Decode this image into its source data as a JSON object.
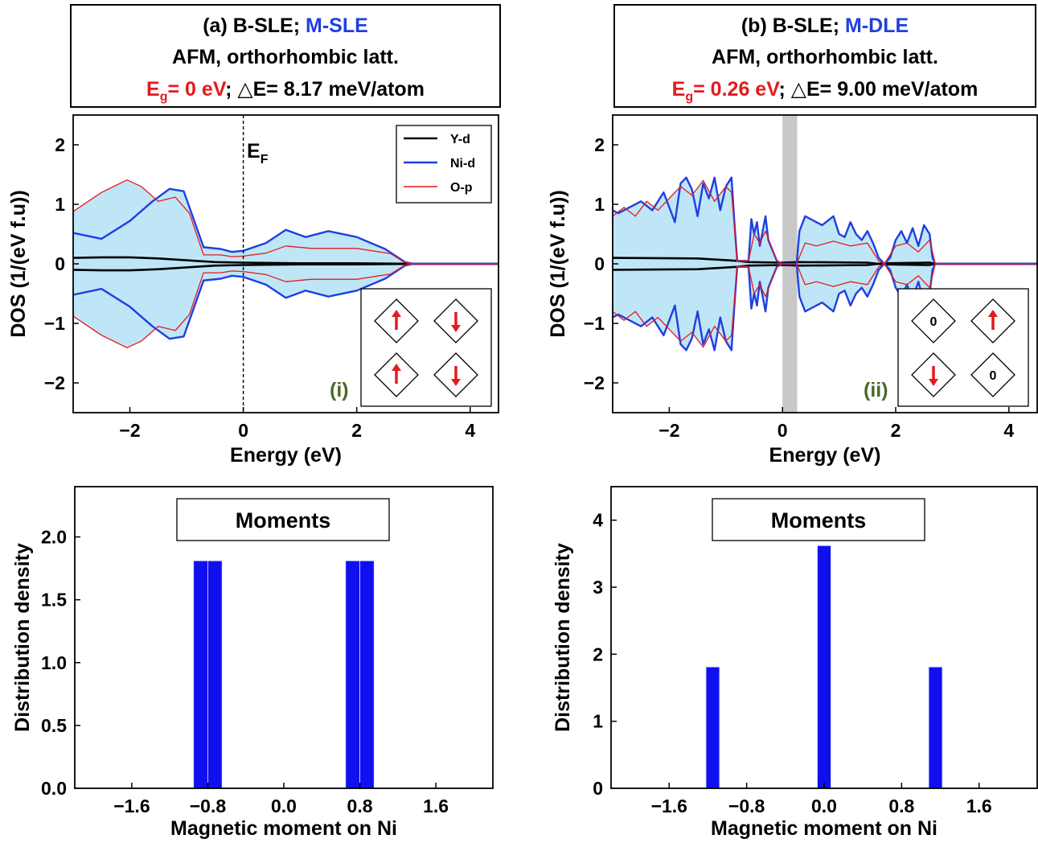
{
  "colors": {
    "red": "#e41a1c",
    "blue": "#1f3fe0",
    "green": "#4a6a2a",
    "fill": "#bfe6f7",
    "gap": "#c8c8c8",
    "bar": "#1010ee"
  },
  "panel_a": {
    "title": {
      "prefix": "(a) B-SLE; ",
      "highlight": "M-SLE"
    },
    "line2": "AFM, orthorhombic latt.",
    "eg": {
      "main": "E",
      "sub": "g",
      "rest": "= 0 eV"
    },
    "de": ";  △E= 8.17 meV/atom",
    "ef_label": {
      "main": "E",
      "sub": "F"
    },
    "inset_tag": "(i)",
    "inset_cells": [
      "up",
      "down",
      "up",
      "down"
    ]
  },
  "panel_b": {
    "title": {
      "prefix": "(b) B-SLE; ",
      "highlight": "M-DLE"
    },
    "line2": "AFM, orthorhombic latt.",
    "eg": {
      "main": "E",
      "sub": "g",
      "rest": "= 0.26 eV"
    },
    "de": ";  △E= 9.00 meV/atom",
    "inset_tag": "(ii)",
    "inset_cells": [
      "0",
      "up",
      "down",
      "0"
    ]
  },
  "moments_label": "Moments",
  "chart_data": [
    {
      "id": "a-dos",
      "type": "area",
      "xlabel": "Energy (eV)",
      "ylabel": "DOS (1/(eV f.u))",
      "xlim": [
        -3,
        4.5
      ],
      "ylim": [
        -2.5,
        2.5
      ],
      "xticks": [
        "−2",
        "0",
        "2",
        "4"
      ],
      "xtick_values": [
        -2,
        0,
        2,
        4
      ],
      "yticks": [
        "2",
        "1",
        "0",
        "−1",
        "−2"
      ],
      "ytick_values": [
        2,
        1,
        0,
        -1,
        -2
      ],
      "legend": [
        "Y-d",
        "Ni-d",
        "O-p"
      ],
      "legend_position": "top-right",
      "fermi_level": 0,
      "series": [
        {
          "name": "Y-d",
          "x": [
            -3,
            -2.5,
            -2,
            -1.5,
            -1,
            -0.5,
            0,
            1,
            2,
            3,
            4.5
          ],
          "values": [
            0.1,
            0.11,
            0.11,
            0.09,
            0.06,
            0.03,
            0.02,
            0.01,
            0.01,
            0,
            0
          ]
        },
        {
          "name": "Ni-d",
          "x": [
            -3,
            -2.5,
            -2,
            -1.6,
            -1.3,
            -1.05,
            -0.7,
            -0.4,
            -0.2,
            0,
            0.4,
            0.75,
            1.1,
            1.5,
            2.0,
            2.5,
            2.85,
            3.0,
            4.5
          ],
          "values": [
            0.52,
            0.42,
            0.72,
            1.05,
            1.26,
            1.22,
            0.28,
            0.25,
            0.2,
            0.22,
            0.35,
            0.57,
            0.45,
            0.55,
            0.45,
            0.25,
            0.03,
            0,
            0
          ]
        },
        {
          "name": "O-p",
          "x": [
            -3,
            -2.5,
            -2.05,
            -1.8,
            -1.5,
            -1.2,
            -0.95,
            -0.7,
            -0.4,
            -0.2,
            0,
            0.4,
            0.75,
            1.2,
            2.0,
            2.6,
            2.85,
            3.0,
            4.5
          ],
          "values": [
            0.88,
            1.2,
            1.41,
            1.3,
            1.05,
            1.12,
            0.85,
            0.15,
            0.15,
            0.12,
            0.13,
            0.18,
            0.3,
            0.26,
            0.26,
            0.17,
            0.02,
            0,
            0
          ]
        }
      ]
    },
    {
      "id": "b-dos",
      "type": "area",
      "xlabel": "Energy (eV)",
      "ylabel": "DOS (1/(eV f.u))",
      "xlim": [
        -3,
        4.5
      ],
      "ylim": [
        -2.5,
        2.5
      ],
      "xticks": [
        "−2",
        "0",
        "2",
        "4"
      ],
      "xtick_values": [
        -2,
        0,
        2,
        4
      ],
      "yticks": [
        "2",
        "1",
        "0",
        "−1",
        "−2"
      ],
      "ytick_values": [
        2,
        1,
        0,
        -1,
        -2
      ],
      "gap": [
        0,
        0.26
      ],
      "series": [
        {
          "name": "Y-d",
          "x": [
            -3,
            -1.5,
            -0.8,
            -0.6,
            0,
            0.3,
            1.5,
            1.7,
            1.8,
            2.6,
            2.7,
            4.5
          ],
          "values": [
            0.1,
            0.09,
            0.05,
            0.03,
            0.02,
            0.03,
            0.02,
            0,
            0.01,
            0.02,
            0,
            0
          ]
        },
        {
          "name": "Ni-d",
          "x": [
            -3,
            -2.9,
            -2.7,
            -2.5,
            -2.3,
            -2.1,
            -1.9,
            -1.8,
            -1.7,
            -1.6,
            -1.5,
            -1.4,
            -1.3,
            -1.2,
            -1.1,
            -1.0,
            -0.9,
            -0.85,
            -0.8,
            -0.6,
            -0.55,
            -0.5,
            -0.45,
            -0.4,
            -0.3,
            -0.25,
            -0.1,
            0,
            0.25,
            0.3,
            0.4,
            0.5,
            0.7,
            0.9,
            1.0,
            1.1,
            1.2,
            1.3,
            1.4,
            1.5,
            1.6,
            1.7,
            1.8,
            1.9,
            2.0,
            2.1,
            2.2,
            2.3,
            2.4,
            2.5,
            2.6,
            2.65,
            2.7,
            4.5
          ],
          "values": [
            0.9,
            0.85,
            0.95,
            1.05,
            0.9,
            1.2,
            0.7,
            1.35,
            1.45,
            1.25,
            0.8,
            1.35,
            1.1,
            1.45,
            0.9,
            1.3,
            1.45,
            0.7,
            0.05,
            0.05,
            0.75,
            0.5,
            0.7,
            0.3,
            0.8,
            0.4,
            0.05,
            0,
            0,
            0.55,
            0.8,
            0.75,
            0.65,
            0.8,
            0.5,
            0.45,
            0.7,
            0.5,
            0.4,
            0.55,
            0.35,
            0.1,
            0,
            0.1,
            0.4,
            0.55,
            0.35,
            0.6,
            0.3,
            0.65,
            0.5,
            0.1,
            0,
            0
          ]
        },
        {
          "name": "O-p",
          "x": [
            -3,
            -2.8,
            -2.6,
            -2.4,
            -2.2,
            -2.0,
            -1.8,
            -1.6,
            -1.4,
            -1.2,
            -1.0,
            -0.9,
            -0.8,
            -0.6,
            -0.5,
            -0.4,
            -0.3,
            -0.1,
            0,
            0.25,
            0.4,
            0.6,
            0.9,
            1.2,
            1.5,
            1.7,
            1.8,
            2.0,
            2.2,
            2.4,
            2.6,
            2.7,
            4.5
          ],
          "values": [
            0.8,
            0.95,
            0.8,
            1.05,
            0.9,
            1.1,
            1.3,
            1.15,
            1.4,
            1.05,
            1.3,
            1.2,
            0.05,
            0.05,
            0.5,
            0.35,
            0.55,
            0.05,
            0,
            0,
            0.35,
            0.3,
            0.38,
            0.3,
            0.35,
            0.05,
            0,
            0.3,
            0.35,
            0.2,
            0.4,
            0,
            0
          ]
        }
      ]
    },
    {
      "id": "a-hist",
      "type": "bar",
      "xlabel": "Magnetic moment on Ni",
      "ylabel": "Distribution density",
      "xlim": [
        -2.2,
        2.2
      ],
      "ylim": [
        0,
        2.4
      ],
      "xticks": [
        "−1.6",
        "−0.8",
        "0.0",
        "0.8",
        "1.6"
      ],
      "xtick_values": [
        -1.6,
        -0.8,
        0,
        0.8,
        1.6
      ],
      "yticks": [
        "0.0",
        "0.5",
        "1.0",
        "1.5",
        "2.0"
      ],
      "ytick_values": [
        0,
        0.5,
        1,
        1.5,
        2
      ],
      "bars": [
        {
          "x0": -0.95,
          "x1": -0.8,
          "value": 1.81
        },
        {
          "x0": -0.8,
          "x1": -0.65,
          "value": 1.81
        },
        {
          "x0": 0.65,
          "x1": 0.8,
          "value": 1.81
        },
        {
          "x0": 0.8,
          "x1": 0.95,
          "value": 1.81
        }
      ]
    },
    {
      "id": "b-hist",
      "type": "bar",
      "xlabel": "Magnetic moment on Ni",
      "ylabel": "Distribution density",
      "xlim": [
        -2.2,
        2.2
      ],
      "ylim": [
        0,
        4.5
      ],
      "xticks": [
        "−1.6",
        "−0.8",
        "0.0",
        "0.8",
        "1.6"
      ],
      "xtick_values": [
        -1.6,
        -0.8,
        0,
        0.8,
        1.6
      ],
      "yticks": [
        "0",
        "1",
        "2",
        "3",
        "4"
      ],
      "ytick_values": [
        0,
        1,
        2,
        3,
        4
      ],
      "bars": [
        {
          "x0": -1.22,
          "x1": -1.08,
          "value": 1.81
        },
        {
          "x0": -0.07,
          "x1": 0.07,
          "value": 3.62
        },
        {
          "x0": 1.08,
          "x1": 1.22,
          "value": 1.81
        }
      ]
    }
  ]
}
